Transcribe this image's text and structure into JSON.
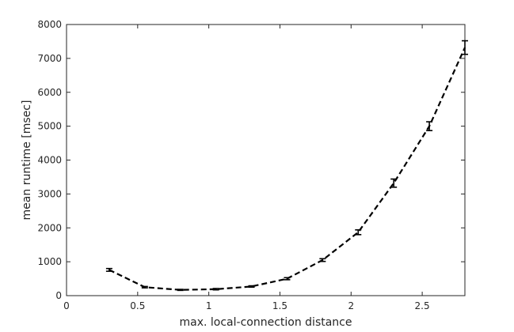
{
  "chart_data": {
    "type": "line",
    "title": "",
    "xlabel": "max. local-connection distance",
    "ylabel": "mean runtime [msec]",
    "xlim": [
      0,
      2.8
    ],
    "ylim": [
      0,
      8000
    ],
    "x_ticks": [
      0,
      0.5,
      1,
      1.5,
      2,
      2.5
    ],
    "x_tick_labels": [
      "0",
      "0.5",
      "1",
      "1.5",
      "2",
      "2.5"
    ],
    "y_ticks": [
      0,
      1000,
      2000,
      3000,
      4000,
      5000,
      6000,
      7000,
      8000
    ],
    "y_tick_labels": [
      "0",
      "1000",
      "2000",
      "3000",
      "4000",
      "5000",
      "6000",
      "7000",
      "8000"
    ],
    "grid": false,
    "legend": "none",
    "series": [
      {
        "line_style": "dashed",
        "color": "#000000",
        "x": [
          0.3,
          0.55,
          0.8,
          1.05,
          1.3,
          1.55,
          1.8,
          2.05,
          2.3,
          2.55,
          2.8
        ],
        "y": [
          760,
          250,
          170,
          190,
          270,
          500,
          1050,
          1870,
          3320,
          5000,
          7320
        ],
        "error": [
          40,
          20,
          15,
          20,
          20,
          30,
          40,
          70,
          120,
          130,
          200
        ]
      }
    ]
  }
}
